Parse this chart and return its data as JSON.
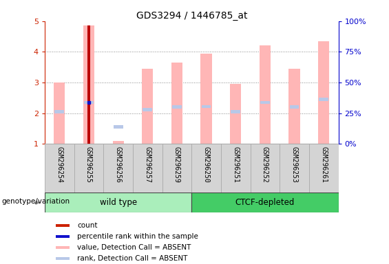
{
  "title": "GDS3294 / 1446785_at",
  "samples": [
    "GSM296254",
    "GSM296255",
    "GSM296256",
    "GSM296257",
    "GSM296259",
    "GSM296250",
    "GSM296251",
    "GSM296252",
    "GSM296253",
    "GSM296261"
  ],
  "group_labels": [
    "wild type",
    "CTCF-depleted"
  ],
  "ylim": [
    1,
    5
  ],
  "y_left_ticks": [
    1,
    2,
    3,
    4,
    5
  ],
  "y_right_ticks": [
    0,
    25,
    50,
    75,
    100
  ],
  "pink_bars": [
    3.0,
    4.85,
    1.1,
    3.45,
    3.65,
    3.95,
    2.95,
    4.2,
    3.45,
    4.35
  ],
  "blue_rank_vals": [
    2.05,
    2.35,
    1.55,
    2.12,
    2.2,
    2.22,
    2.05,
    2.35,
    2.2,
    2.45
  ],
  "red_bar_index": 1,
  "red_bar_value": 4.85,
  "blue_dot_index": 1,
  "blue_dot_value": 2.35,
  "colors": {
    "pink_bar": "#ffb6b6",
    "light_blue_bar": "#b8c8e8",
    "red_bar": "#bb0000",
    "blue_dot": "#1111cc",
    "bg_xtick": "#d4d4d4",
    "bg_xtick_edge": "#aaaaaa",
    "group_wild": "#aaeebb",
    "group_ctcf": "#44cc66",
    "grid": "#888888",
    "left_axis_color": "#cc2200",
    "right_axis_color": "#0000cc",
    "legend_red": "#cc2200",
    "legend_blue": "#1111cc",
    "legend_pink": "#ffb6b6",
    "legend_lblue": "#b8c8e8"
  },
  "legend_items": [
    {
      "label": "count",
      "color": "#cc2200"
    },
    {
      "label": "percentile rank within the sample",
      "color": "#1111cc"
    },
    {
      "label": "value, Detection Call = ABSENT",
      "color": "#ffb6b6"
    },
    {
      "label": "rank, Detection Call = ABSENT",
      "color": "#b8c8e8"
    }
  ]
}
